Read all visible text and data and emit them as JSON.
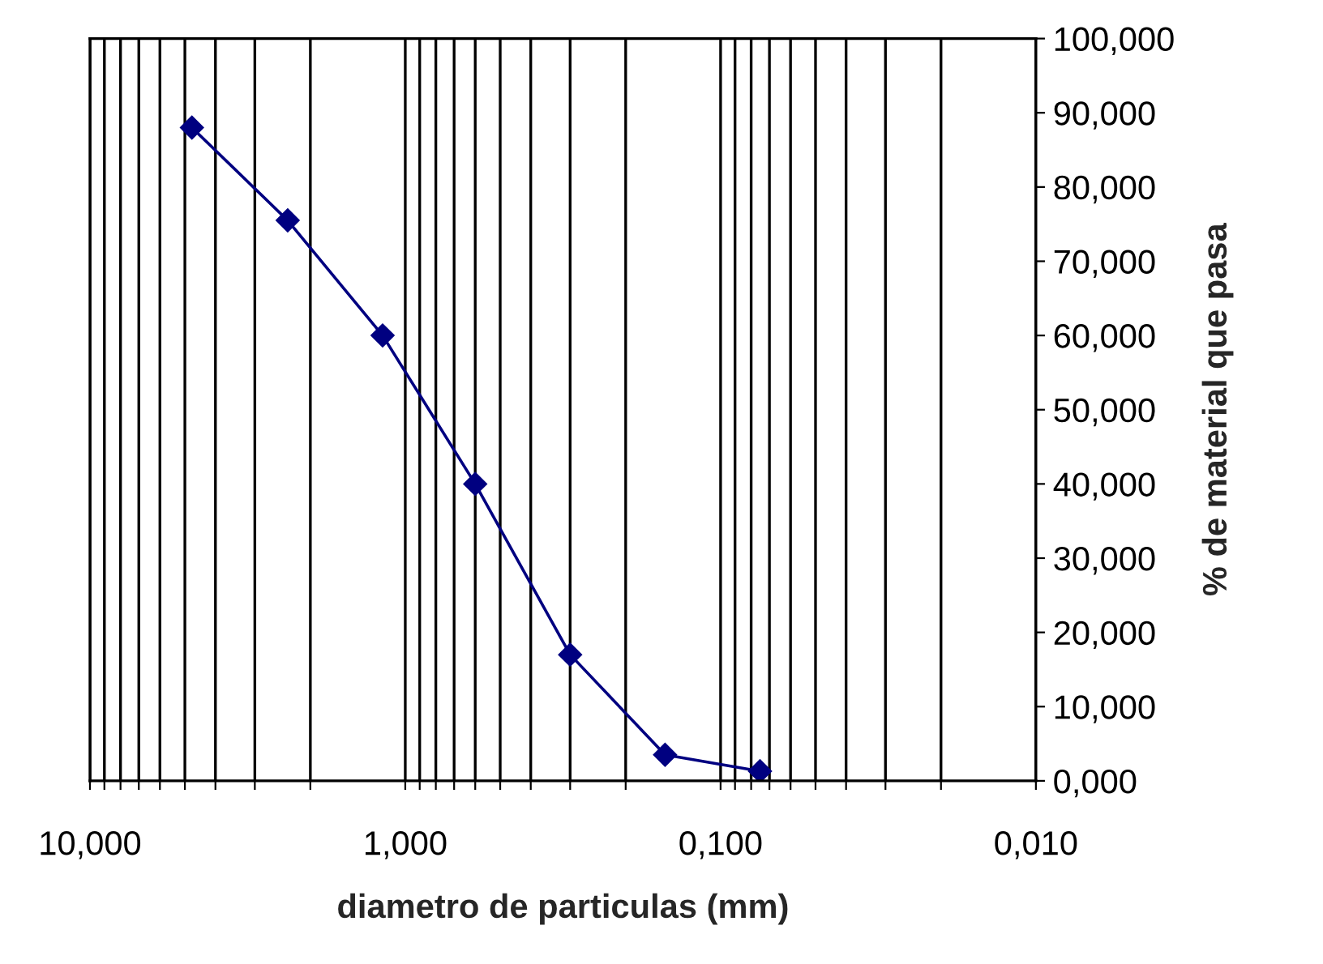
{
  "chart_data": {
    "type": "line",
    "xlabel": "diametro de particulas (mm)",
    "ylabel": "% de material que pasa",
    "log": "x",
    "grid": "x",
    "marker": "diamond",
    "line_style": "solid",
    "series": [
      {
        "color": "#000080",
        "x": [
          4.75,
          2.36,
          1.18,
          0.6,
          0.3,
          0.15,
          0.075
        ],
        "values": [
          88.0,
          75.5,
          60.0,
          40.0,
          17.0,
          3.5,
          1.3
        ]
      }
    ],
    "xlim": [
      10,
      0.01
    ],
    "xticks": [
      {
        "value": 10,
        "label": "10,000"
      },
      {
        "value": 9,
        "label": null
      },
      {
        "value": 8,
        "label": null
      },
      {
        "value": 7,
        "label": null
      },
      {
        "value": 6,
        "label": null
      },
      {
        "value": 5,
        "label": null
      },
      {
        "value": 4,
        "label": null
      },
      {
        "value": 3,
        "label": null
      },
      {
        "value": 2,
        "label": null
      },
      {
        "value": 1,
        "label": "1,000"
      },
      {
        "value": 0.9,
        "label": null
      },
      {
        "value": 0.8,
        "label": null
      },
      {
        "value": 0.7,
        "label": null
      },
      {
        "value": 0.6,
        "label": null
      },
      {
        "value": 0.5,
        "label": null
      },
      {
        "value": 0.4,
        "label": null
      },
      {
        "value": 0.3,
        "label": null
      },
      {
        "value": 0.2,
        "label": null
      },
      {
        "value": 0.1,
        "label": "0,100"
      },
      {
        "value": 0.09,
        "label": null
      },
      {
        "value": 0.08,
        "label": null
      },
      {
        "value": 0.07,
        "label": null
      },
      {
        "value": 0.06,
        "label": null
      },
      {
        "value": 0.05,
        "label": null
      },
      {
        "value": 0.04,
        "label": null
      },
      {
        "value": 0.03,
        "label": null
      },
      {
        "value": 0.02,
        "label": null
      },
      {
        "value": 0.01,
        "label": "0,010"
      }
    ],
    "ylim": [
      0,
      100
    ],
    "yticks": [
      {
        "value": 0,
        "label": "0,000"
      },
      {
        "value": 10,
        "label": "10,000"
      },
      {
        "value": 20,
        "label": "20,000"
      },
      {
        "value": 30,
        "label": "30,000"
      },
      {
        "value": 40,
        "label": "40,000"
      },
      {
        "value": 50,
        "label": "50,000"
      },
      {
        "value": 60,
        "label": "60,000"
      },
      {
        "value": 70,
        "label": "70,000"
      },
      {
        "value": 80,
        "label": "80,000"
      },
      {
        "value": 90,
        "label": "90,000"
      },
      {
        "value": 100,
        "label": "100,000"
      }
    ]
  }
}
